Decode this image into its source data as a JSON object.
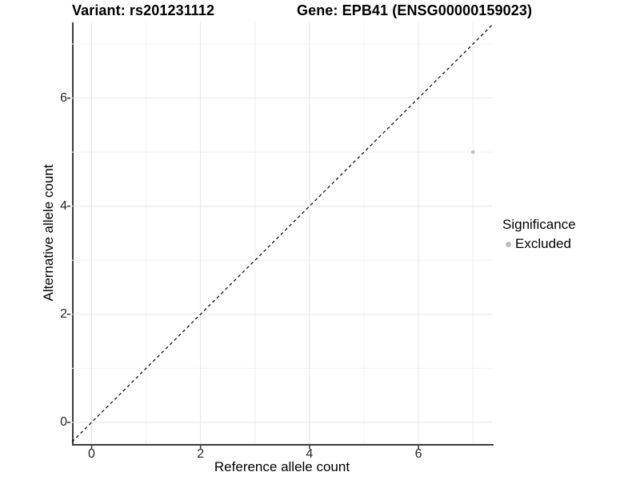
{
  "titles": {
    "variant": "Variant: rs201231112",
    "gene": "Gene: EPB41 (ENSG00000159023)"
  },
  "chart_data": {
    "type": "scatter",
    "title": "Variant: rs201231112  /  Gene: EPB41 (ENSG00000159023)",
    "xlabel": "Reference allele count",
    "ylabel": "Alternative allele count",
    "xlim": [
      -0.36,
      7.35
    ],
    "ylim": [
      -0.4,
      7.4
    ],
    "x_ticks": [
      0,
      2,
      4,
      6
    ],
    "y_ticks": [
      0,
      2,
      4,
      6
    ],
    "x_minor_gridlines": [
      1,
      3,
      5,
      7
    ],
    "y_minor_gridlines": [
      1,
      3,
      5,
      7
    ],
    "grid": "major and minor gridlines on white background",
    "identity_line": {
      "equation": "y = x",
      "style": "dashed",
      "color": "#000000"
    },
    "series": [
      {
        "name": "Excluded",
        "color": "#bdbdbd",
        "point_radius": 2.3,
        "points": [
          {
            "x": 7,
            "y": 5
          }
        ]
      }
    ],
    "legend": {
      "title": "Significance",
      "position": "right",
      "entries": [
        {
          "label": "Excluded",
          "color": "#bdbdbd"
        }
      ]
    },
    "colors": {
      "axis_line": "#3c3c3c",
      "tick_mark": "#3c3c3c",
      "tick_label": "#262626",
      "grid_major": "#e4e4e4",
      "grid_minor": "#f0f0f0",
      "point": "#bdbdbd"
    }
  }
}
